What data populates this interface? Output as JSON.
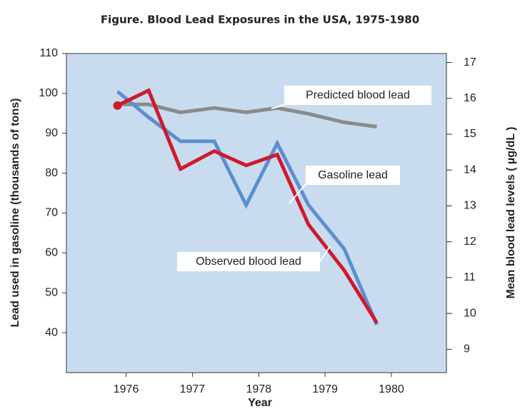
{
  "chart_data": {
    "type": "line",
    "title": "Figure. Blood Lead Exposures in the USA, 1975-1980",
    "x_label": "Year",
    "y_label": "Lead used in gasoline (thousands of tons)",
    "y2_label": "Mean blood lead levels ( µg/dL )",
    "x": [
      1975.87,
      1976.34,
      1976.82,
      1977.33,
      1977.81,
      1978.28,
      1978.75,
      1979.29,
      1979.78
    ],
    "xlim": [
      1975.1,
      1980.83
    ],
    "xticks": [
      1976,
      1977,
      1978,
      1979,
      1980
    ],
    "ylim": [
      30,
      110
    ],
    "yticks": [
      40,
      50,
      60,
      70,
      80,
      90,
      100,
      110
    ],
    "y2lim": [
      8.35,
      17.25
    ],
    "y2ticks": [
      9,
      10,
      11,
      12,
      13,
      14,
      15,
      16,
      17
    ],
    "background": "#c9dcef",
    "series": [
      {
        "name": "Predicted blood lead",
        "color": "#8a8a8a",
        "axis": "y2",
        "values": [
          15.83,
          15.83,
          15.61,
          15.73,
          15.61,
          15.73,
          15.57,
          15.33,
          15.21
        ]
      },
      {
        "name": "Gasoline lead",
        "color": "#5b8fd0",
        "axis": "y",
        "values": [
          100.5,
          94,
          88,
          88,
          72,
          87.5,
          72,
          61,
          42
        ]
      },
      {
        "name": "Observed blood lead",
        "color": "#d0192c",
        "axis": "y2",
        "values": [
          15.8,
          16.22,
          14.03,
          14.53,
          14.13,
          14.43,
          12.48,
          11.2,
          9.74
        ]
      }
    ]
  }
}
